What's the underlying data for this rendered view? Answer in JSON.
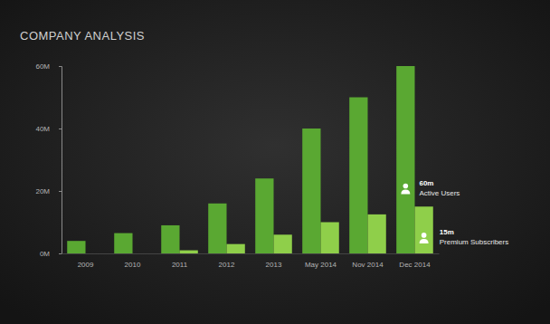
{
  "chart_data": {
    "type": "bar",
    "title": "COMPANY ANALYSIS",
    "categories": [
      "2009",
      "2010",
      "2011",
      "2012",
      "2013",
      "May 2014",
      "Nov 2014",
      "Dec 2014"
    ],
    "series": [
      {
        "name": "Active Users",
        "color": "#5aa832",
        "annotation": "60m",
        "values": [
          4,
          6.5,
          9,
          16,
          24,
          40,
          50,
          60
        ]
      },
      {
        "name": "Premium Subscribers",
        "color": "#8fcf4a",
        "annotation": "15m",
        "values": [
          0,
          0,
          1,
          3,
          6,
          10,
          12.5,
          15
        ]
      }
    ],
    "ylim": [
      0,
      60
    ],
    "yticks": [
      {
        "value": 0,
        "label": "0M"
      },
      {
        "value": 20,
        "label": "20M"
      },
      {
        "value": 40,
        "label": "40M"
      },
      {
        "value": 60,
        "label": "60M"
      }
    ],
    "grid": false,
    "data_labels": false
  }
}
